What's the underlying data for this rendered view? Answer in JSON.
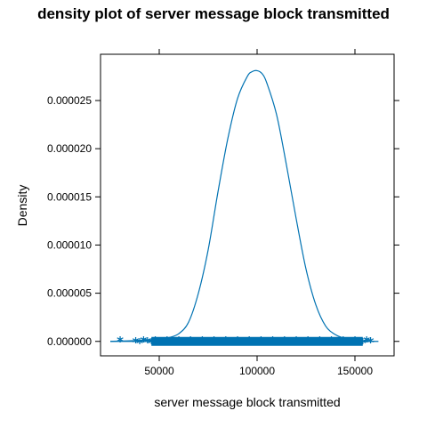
{
  "chart_data": {
    "type": "area",
    "title": "density plot of server message block transmitted",
    "xlabel": "server message block transmitted",
    "ylabel": "Density",
    "xlim": [
      20000,
      170000
    ],
    "ylim": [
      -1.5e-06,
      2.98e-05
    ],
    "x_ticks": [
      50000,
      100000,
      150000
    ],
    "x_tick_labels": [
      "50000",
      "100000",
      "150000"
    ],
    "y_ticks": [
      0,
      5e-06,
      1e-05,
      1.5e-05,
      2e-05,
      2.5e-05
    ],
    "y_tick_labels": [
      "0.000000",
      "0.000005",
      "0.000010",
      "0.000015",
      "0.000020",
      "0.000025"
    ],
    "grid": false,
    "legend": "none",
    "color": "#0072B2",
    "series": [
      {
        "x": [
          25000,
          40000,
          50000,
          55000,
          60000,
          65000,
          70000,
          75000,
          80000,
          85000,
          90000,
          95000,
          97500,
          100000,
          102500,
          105000,
          110000,
          115000,
          120000,
          125000,
          130000,
          135000,
          140000,
          145000,
          150000,
          155000,
          160000
        ],
        "y": [
          0,
          1e-07,
          2e-07,
          4e-07,
          8e-07,
          2e-06,
          5e-06,
          9.5e-06,
          1.55e-05,
          2.1e-05,
          2.52e-05,
          2.75e-05,
          2.8e-05,
          2.81e-05,
          2.78e-05,
          2.68e-05,
          2.35e-05,
          1.83e-05,
          1.27e-05,
          7.5e-06,
          3.8e-06,
          1.6e-06,
          7e-07,
          3e-07,
          1e-07,
          5e-08,
          0
        ]
      }
    ],
    "rug": {
      "marker": "*",
      "x": [
        30000,
        38000,
        40000,
        42000,
        44000,
        46000,
        48000,
        50000,
        52000,
        54000,
        56000,
        58000,
        60000,
        62000,
        64000,
        66000,
        68000,
        70000,
        72000,
        74000,
        76000,
        78000,
        80000,
        82000,
        84000,
        86000,
        88000,
        90000,
        92000,
        94000,
        96000,
        98000,
        100000,
        102000,
        104000,
        106000,
        108000,
        110000,
        112000,
        114000,
        116000,
        118000,
        120000,
        122000,
        124000,
        126000,
        128000,
        130000,
        132000,
        134000,
        136000,
        138000,
        140000,
        142000,
        144000,
        146000,
        148000,
        150000,
        152000,
        154000,
        156000,
        158000
      ]
    }
  }
}
